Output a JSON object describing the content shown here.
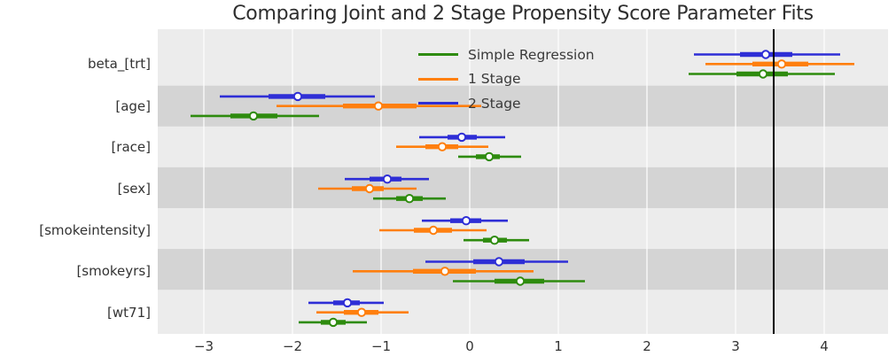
{
  "chart_data": {
    "type": "forest",
    "title": "Comparing Joint and 2 Stage Propensity Score Parameter Fits",
    "parameters": [
      "beta_[trt]",
      "[age]",
      "[race]",
      "[sex]",
      "[smokeintensity]",
      "[smokeyrs]",
      "[wt71]"
    ],
    "x_ticks": [
      {
        "value": -3,
        "label": "−3"
      },
      {
        "value": -2,
        "label": "−2"
      },
      {
        "value": -1,
        "label": "−1"
      },
      {
        "value": 0,
        "label": "0"
      },
      {
        "value": 1,
        "label": "1"
      },
      {
        "value": 2,
        "label": "2"
      },
      {
        "value": 3,
        "label": "3"
      },
      {
        "value": 4,
        "label": "4"
      }
    ],
    "xlim": [
      -3.52,
      4.72
    ],
    "reference_line_x": 3.43,
    "legend_position": "upper center, inside plot",
    "series": [
      {
        "name": "Simple Regression",
        "color": "#2E8B0E",
        "points": [
          {
            "param": "beta_[trt]",
            "estimate": 3.31,
            "inner_interval": [
              3.01,
              3.59
            ],
            "outer_interval": [
              2.47,
              4.12
            ]
          },
          {
            "param": "[age]",
            "estimate": -2.44,
            "inner_interval": [
              -2.7,
              -2.17
            ],
            "outer_interval": [
              -3.15,
              -1.7
            ]
          },
          {
            "param": "[race]",
            "estimate": 0.22,
            "inner_interval": [
              0.07,
              0.34
            ],
            "outer_interval": [
              -0.13,
              0.58
            ]
          },
          {
            "param": "[sex]",
            "estimate": -0.68,
            "inner_interval": [
              -0.83,
              -0.53
            ],
            "outer_interval": [
              -1.09,
              -0.27
            ]
          },
          {
            "param": "[smokeintensity]",
            "estimate": 0.28,
            "inner_interval": [
              0.15,
              0.42
            ],
            "outer_interval": [
              -0.07,
              0.67
            ]
          },
          {
            "param": "[smokeyrs]",
            "estimate": 0.57,
            "inner_interval": [
              0.28,
              0.84
            ],
            "outer_interval": [
              -0.19,
              1.3
            ]
          },
          {
            "param": "[wt71]",
            "estimate": -1.54,
            "inner_interval": [
              -1.68,
              -1.4
            ],
            "outer_interval": [
              -1.93,
              -1.16
            ]
          }
        ]
      },
      {
        "name": "1 Stage",
        "color": "#FF7F0E",
        "points": [
          {
            "param": "beta_[trt]",
            "estimate": 3.52,
            "inner_interval": [
              3.19,
              3.82
            ],
            "outer_interval": [
              2.66,
              4.34
            ]
          },
          {
            "param": "[age]",
            "estimate": -1.03,
            "inner_interval": [
              -1.43,
              -0.6
            ],
            "outer_interval": [
              -2.18,
              0.13
            ]
          },
          {
            "param": "[race]",
            "estimate": -0.31,
            "inner_interval": [
              -0.5,
              -0.13
            ],
            "outer_interval": [
              -0.83,
              0.21
            ]
          },
          {
            "param": "[sex]",
            "estimate": -1.13,
            "inner_interval": [
              -1.33,
              -0.97
            ],
            "outer_interval": [
              -1.71,
              -0.6
            ]
          },
          {
            "param": "[smokeintensity]",
            "estimate": -0.41,
            "inner_interval": [
              -0.63,
              -0.2
            ],
            "outer_interval": [
              -1.02,
              0.19
            ]
          },
          {
            "param": "[smokeyrs]",
            "estimate": -0.28,
            "inner_interval": [
              -0.64,
              0.07
            ],
            "outer_interval": [
              -1.32,
              0.72
            ]
          },
          {
            "param": "[wt71]",
            "estimate": -1.22,
            "inner_interval": [
              -1.42,
              -1.03
            ],
            "outer_interval": [
              -1.73,
              -0.69
            ]
          }
        ]
      },
      {
        "name": "2 Stage",
        "color": "#2E2ED6",
        "points": [
          {
            "param": "beta_[trt]",
            "estimate": 3.34,
            "inner_interval": [
              3.05,
              3.64
            ],
            "outer_interval": [
              2.53,
              4.18
            ]
          },
          {
            "param": "[age]",
            "estimate": -1.94,
            "inner_interval": [
              -2.27,
              -1.63
            ],
            "outer_interval": [
              -2.82,
              -1.07
            ]
          },
          {
            "param": "[race]",
            "estimate": -0.09,
            "inner_interval": [
              -0.25,
              0.08
            ],
            "outer_interval": [
              -0.57,
              0.4
            ]
          },
          {
            "param": "[sex]",
            "estimate": -0.93,
            "inner_interval": [
              -1.13,
              -0.77
            ],
            "outer_interval": [
              -1.41,
              -0.46
            ]
          },
          {
            "param": "[smokeintensity]",
            "estimate": -0.04,
            "inner_interval": [
              -0.22,
              0.13
            ],
            "outer_interval": [
              -0.54,
              0.43
            ]
          },
          {
            "param": "[smokeyrs]",
            "estimate": 0.33,
            "inner_interval": [
              0.04,
              0.62
            ],
            "outer_interval": [
              -0.5,
              1.11
            ]
          },
          {
            "param": "[wt71]",
            "estimate": -1.38,
            "inner_interval": [
              -1.54,
              -1.24
            ],
            "outer_interval": [
              -1.82,
              -0.97
            ]
          }
        ]
      }
    ],
    "style": {
      "band_light": "#ECECEC",
      "band_dark": "#D4D4D4",
      "gridline_color": "#FFFFFF",
      "reference_line_color": "#000000",
      "marker_fill": "#FDFDFB",
      "text_color": "#333333",
      "title_color": "#2E2E2E"
    }
  }
}
